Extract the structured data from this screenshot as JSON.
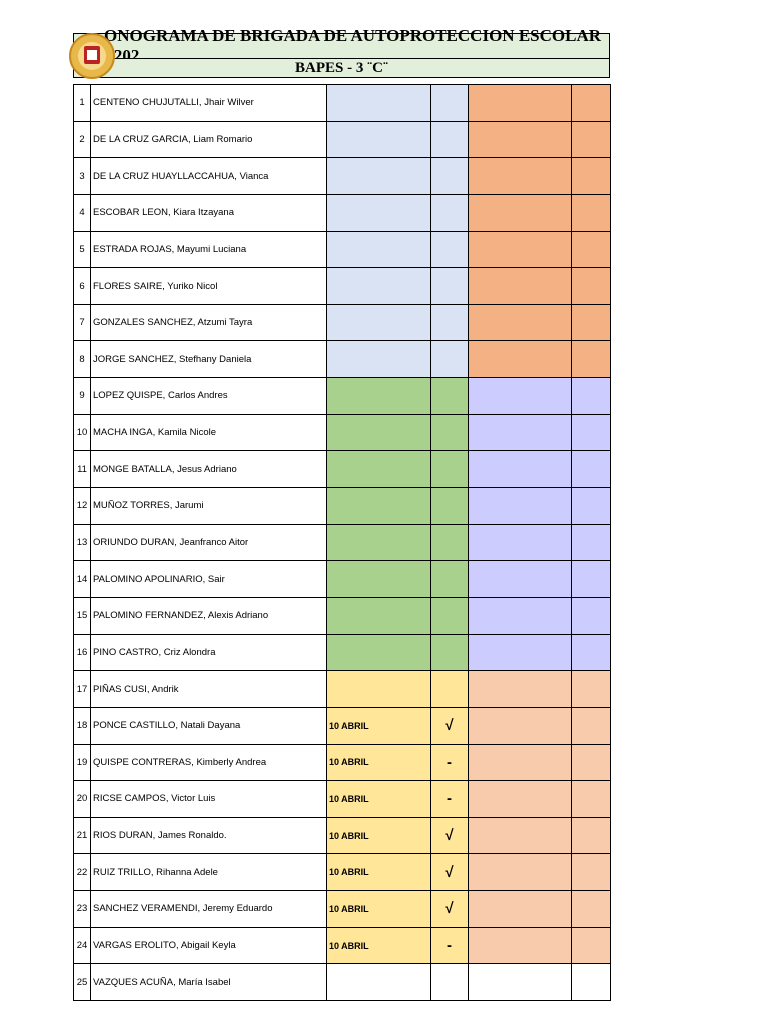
{
  "header": {
    "title": "ONOGRAMA DE BRIGADA DE AUTOPROTECCION ESCOLAR - 202",
    "subtitle": "BAPES - 3 ¨C¨"
  },
  "table": {
    "rows": [
      {
        "num": 1,
        "name": "CENTENO CHUJUTALLI, Jhair Wilver"
      },
      {
        "num": 2,
        "name": "DE LA CRUZ GARCIA, Liam Romario"
      },
      {
        "num": 3,
        "name": "DE LA CRUZ HUAYLLACCAHUA, Vianca"
      },
      {
        "num": 4,
        "name": "ESCOBAR LEON, Kiara Itzayana"
      },
      {
        "num": 5,
        "name": "ESTRADA ROJAS, Mayumi Luciana"
      },
      {
        "num": 6,
        "name": "FLORES SAIRE, Yuriko Nicol"
      },
      {
        "num": 7,
        "name": "GONZALES SANCHEZ, Atzumi Tayra"
      },
      {
        "num": 8,
        "name": "JORGE SANCHEZ, Stefhany Daniela"
      },
      {
        "num": 9,
        "name": "LOPEZ QUISPE, Carlos Andres"
      },
      {
        "num": 10,
        "name": "MACHA INGA, Kamila Nicole"
      },
      {
        "num": 11,
        "name": "MONGE BATALLA, Jesus Adriano"
      },
      {
        "num": 12,
        "name": "MUÑOZ TORRES, Jarumi"
      },
      {
        "num": 13,
        "name": "ORIUNDO DURAN, Jeanfranco Aitor"
      },
      {
        "num": 14,
        "name": "PALOMINO APOLINARIO, Sair"
      },
      {
        "num": 15,
        "name": "PALOMINO FERNANDEZ, Alexis Adriano"
      },
      {
        "num": 16,
        "name": "PINO CASTRO, Criz Alondra"
      },
      {
        "num": 17,
        "name": "PIÑAS CUSI, Andrik"
      },
      {
        "num": 18,
        "name": "PONCE CASTILLO, Natali Dayana",
        "date": "10 ABRIL",
        "mark": "√"
      },
      {
        "num": 19,
        "name": "QUISPE CONTRERAS, Kimberly Andrea",
        "date": "10 ABRIL",
        "mark": "-"
      },
      {
        "num": 20,
        "name": "RICSE CAMPOS, Victor Luis",
        "date": "10 ABRIL",
        "mark": "-"
      },
      {
        "num": 21,
        "name": "RIOS DURAN, James Ronaldo.",
        "date": "10 ABRIL",
        "mark": "√"
      },
      {
        "num": 22,
        "name": "RUIZ TRILLO, Rihanna Adele",
        "date": "10 ABRIL",
        "mark": "√"
      },
      {
        "num": 23,
        "name": "SANCHEZ VERAMENDI, Jeremy Eduardo",
        "date": "10 ABRIL",
        "mark": "√"
      },
      {
        "num": 24,
        "name": "VARGAS EROLITO, Abigail Keyla",
        "date": "10 ABRIL",
        "mark": "-"
      },
      {
        "num": 25,
        "name": "VAZQUES ACUÑA, María Isabel"
      }
    ]
  }
}
